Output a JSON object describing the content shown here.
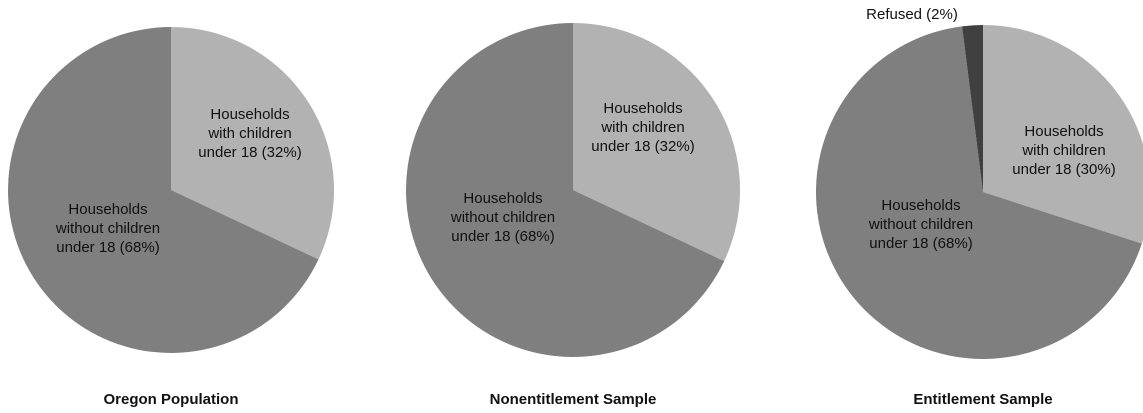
{
  "chart_data": [
    {
      "type": "pie",
      "title": "Oregon Population",
      "slices": [
        {
          "label": [
            "Households",
            "with children",
            "under 18 (32%)"
          ],
          "value": 32,
          "color": "#b2b2b2"
        },
        {
          "label": [
            "Households",
            "without children",
            "under 18 (68%)"
          ],
          "value": 68,
          "color": "#7f7f7f"
        }
      ]
    },
    {
      "type": "pie",
      "title": "Nonentitlement Sample",
      "slices": [
        {
          "label": [
            "Households",
            "with children",
            "under 18 (32%)"
          ],
          "value": 32,
          "color": "#b2b2b2"
        },
        {
          "label": [
            "Households",
            "without children",
            "under 18 (68%)"
          ],
          "value": 68,
          "color": "#7f7f7f"
        }
      ]
    },
    {
      "type": "pie",
      "title": "Entitlement Sample",
      "slices": [
        {
          "label": [
            "Households",
            "with children",
            "under 18 (30%)"
          ],
          "value": 30,
          "color": "#b2b2b2"
        },
        {
          "label": [
            "Households",
            "without children",
            "under 18 (68%)"
          ],
          "value": 68,
          "color": "#7f7f7f"
        },
        {
          "label": [
            "Refused (2%)"
          ],
          "value": 2,
          "color": "#404040"
        }
      ]
    }
  ]
}
